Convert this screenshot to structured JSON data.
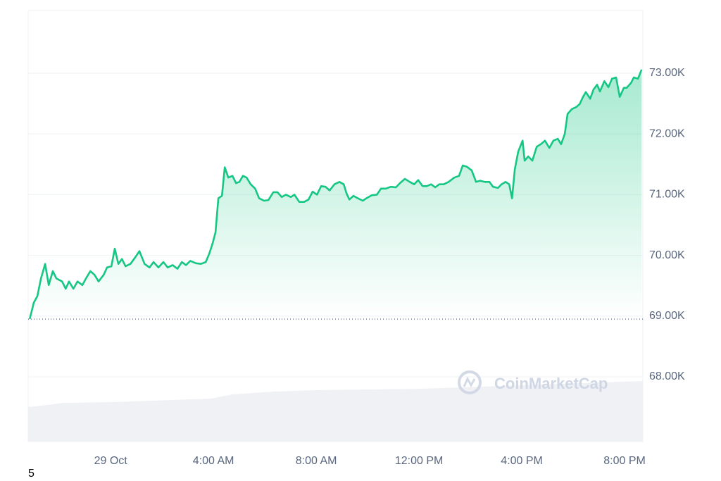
{
  "chart_data": {
    "type": "line",
    "x": [
      -3.15,
      -2.99,
      -2.85,
      -2.71,
      -2.55,
      -2.41,
      -2.25,
      -2.11,
      -1.89,
      -1.75,
      -1.62,
      -1.45,
      -1.29,
      -1.1,
      -0.96,
      -0.79,
      -0.63,
      -0.47,
      -0.27,
      -0.14,
      0.03,
      0.16,
      0.3,
      0.44,
      0.58,
      0.77,
      0.96,
      1.12,
      1.32,
      1.51,
      1.67,
      1.86,
      2.05,
      2.22,
      2.41,
      2.6,
      2.77,
      2.93,
      3.1,
      3.32,
      3.51,
      3.7,
      3.84,
      3.97,
      4.08,
      4.19,
      4.33,
      4.44,
      4.58,
      4.74,
      4.88,
      5.01,
      5.15,
      5.29,
      5.45,
      5.62,
      5.78,
      5.97,
      6.14,
      6.33,
      6.49,
      6.66,
      6.82,
      7.01,
      7.15,
      7.34,
      7.53,
      7.7,
      7.86,
      8.03,
      8.19,
      8.36,
      8.52,
      8.71,
      8.9,
      9.07,
      9.18,
      9.29,
      9.45,
      9.62,
      9.81,
      9.95,
      10.16,
      10.36,
      10.52,
      10.71,
      10.9,
      11.1,
      11.26,
      11.45,
      11.64,
      11.81,
      11.97,
      12.14,
      12.3,
      12.47,
      12.63,
      12.79,
      12.96,
      13.15,
      13.37,
      13.56,
      13.7,
      13.86,
      14.05,
      14.22,
      14.38,
      14.55,
      14.74,
      14.88,
      15.07,
      15.21,
      15.37,
      15.51,
      15.62,
      15.73,
      15.86,
      16.03,
      16.11,
      16.25,
      16.41,
      16.58,
      16.74,
      16.9,
      17.07,
      17.23,
      17.4,
      17.53,
      17.67,
      17.78,
      17.95,
      18.11,
      18.25,
      18.38,
      18.49,
      18.66,
      18.79,
      18.93,
      19.04,
      19.21,
      19.37,
      19.51,
      19.67,
      19.81,
      19.97,
      20.08,
      20.25,
      20.36,
      20.52,
      20.66
    ],
    "values": [
      68950,
      69220,
      69330,
      69620,
      69860,
      69510,
      69740,
      69620,
      69570,
      69450,
      69570,
      69450,
      69570,
      69510,
      69620,
      69740,
      69680,
      69570,
      69680,
      69800,
      69820,
      70110,
      69860,
      69940,
      69820,
      69860,
      69970,
      70070,
      69860,
      69800,
      69890,
      69800,
      69890,
      69800,
      69840,
      69780,
      69890,
      69840,
      69910,
      69870,
      69860,
      69890,
      70030,
      70200,
      70380,
      70940,
      70980,
      71450,
      71280,
      71310,
      71190,
      71210,
      71310,
      71280,
      71170,
      71100,
      70940,
      70900,
      70910,
      71040,
      71040,
      70960,
      71000,
      70960,
      71000,
      70880,
      70880,
      70920,
      71050,
      71000,
      71140,
      71130,
      71070,
      71170,
      71210,
      71170,
      71020,
      70920,
      70980,
      70940,
      70900,
      70940,
      70990,
      71000,
      71100,
      71100,
      71130,
      71120,
      71190,
      71260,
      71210,
      71170,
      71240,
      71140,
      71140,
      71170,
      71120,
      71170,
      71170,
      71210,
      71280,
      71310,
      71480,
      71460,
      71400,
      71210,
      71230,
      71210,
      71210,
      71130,
      71110,
      71170,
      71210,
      71170,
      70940,
      71420,
      71710,
      71890,
      71560,
      71630,
      71560,
      71790,
      71830,
      71890,
      71770,
      71890,
      71920,
      71830,
      72000,
      72330,
      72410,
      72440,
      72490,
      72610,
      72690,
      72580,
      72730,
      72810,
      72700,
      72870,
      72770,
      72910,
      72930,
      72610,
      72760,
      72760,
      72840,
      72930,
      72910,
      73060
    ],
    "color": "#16c784",
    "baseline": 68950,
    "xlim": [
      -3.21,
      20.71
    ],
    "xticks": [
      {
        "value": 0,
        "label": "29 Oct"
      },
      {
        "value": 4,
        "label": "4:00 AM"
      },
      {
        "value": 8,
        "label": "8:00 AM"
      },
      {
        "value": 12,
        "label": "12:00 PM"
      },
      {
        "value": 16,
        "label": "4:00 PM"
      },
      {
        "value": 20,
        "label": "8:00 PM"
      }
    ],
    "ylim": [
      66933,
      74032
    ],
    "yticks": [
      {
        "value": 68000,
        "label": "68.00K"
      },
      {
        "value": 69000,
        "label": "69.00K"
      },
      {
        "value": 70000,
        "label": "70.00K"
      },
      {
        "value": 71000,
        "label": "71.00K"
      },
      {
        "value": 72000,
        "label": "72.00K"
      },
      {
        "value": 73000,
        "label": "73.00K"
      }
    ],
    "grid": true,
    "watermark": "CoinMarketCap",
    "annotation": "5"
  }
}
